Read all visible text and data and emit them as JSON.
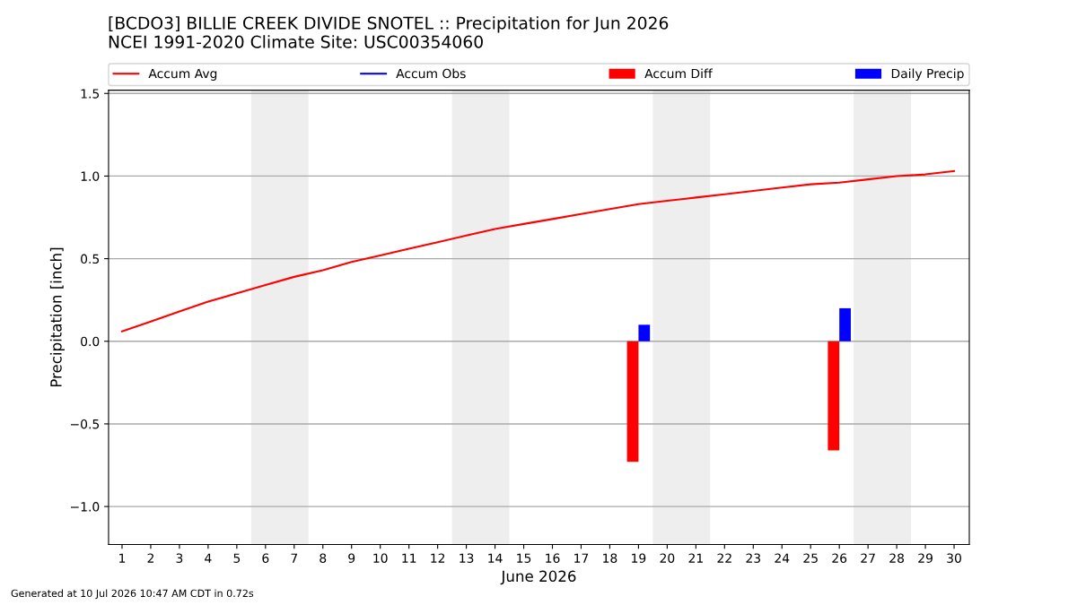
{
  "chart_data": {
    "type": "line",
    "title": "[BCDO3] BILLIE CREEK DIVIDE SNOTEL :: Precipitation for Jun 2026\nNCEI 1991-2020 Climate Site: USC00354060",
    "xlabel": "June 2026",
    "ylabel": "Precipitation [inch]",
    "x": [
      1,
      2,
      3,
      4,
      5,
      6,
      7,
      8,
      9,
      10,
      11,
      12,
      13,
      14,
      15,
      16,
      17,
      18,
      19,
      20,
      21,
      22,
      23,
      24,
      25,
      26,
      27,
      28,
      29,
      30
    ],
    "series": [
      {
        "name": "Accum Avg",
        "color": "#ff0000",
        "values": [
          0.06,
          0.12,
          0.18,
          0.24,
          0.29,
          0.34,
          0.39,
          0.43,
          0.48,
          0.52,
          0.56,
          0.6,
          0.64,
          0.68,
          0.71,
          0.74,
          0.77,
          0.8,
          0.83,
          0.85,
          0.87,
          0.89,
          0.91,
          0.93,
          0.95,
          0.96,
          0.98,
          1.0,
          1.01,
          1.03
        ]
      },
      {
        "name": "Accum Obs",
        "color": "#0000ff",
        "values": [
          null,
          null,
          null,
          null,
          null,
          null,
          null,
          null,
          null,
          null,
          null,
          null,
          null,
          null,
          null,
          null,
          null,
          null,
          null,
          null,
          null,
          null,
          null,
          null,
          null,
          null,
          null,
          null,
          null,
          null
        ]
      },
      {
        "name": "Accum Diff",
        "type": "bar",
        "color": "#ff0000",
        "values": [
          null,
          null,
          null,
          null,
          null,
          null,
          null,
          null,
          null,
          null,
          null,
          null,
          null,
          null,
          null,
          null,
          null,
          null,
          -0.73,
          null,
          null,
          null,
          null,
          null,
          null,
          -0.66,
          null,
          null,
          null,
          null
        ]
      },
      {
        "name": "Daily Precip",
        "type": "bar",
        "color": "#0000ff",
        "values": [
          null,
          null,
          null,
          null,
          null,
          null,
          null,
          null,
          null,
          null,
          null,
          null,
          null,
          null,
          null,
          null,
          null,
          null,
          0.1,
          null,
          null,
          null,
          null,
          null,
          null,
          0.2,
          null,
          null,
          null,
          null
        ]
      }
    ],
    "xlim": [
      0.53,
      30.53
    ],
    "xticks": [
      1,
      2,
      3,
      4,
      5,
      6,
      7,
      8,
      9,
      10,
      11,
      12,
      13,
      14,
      15,
      16,
      17,
      18,
      19,
      20,
      21,
      22,
      23,
      24,
      25,
      26,
      27,
      28,
      29,
      30
    ],
    "ylim": [
      -1.23,
      1.52
    ],
    "yticks": [
      {
        "value": -1.0,
        "label": "−1.0"
      },
      {
        "value": -0.5,
        "label": "−0.5"
      },
      {
        "value": 0.0,
        "label": "0.0"
      },
      {
        "value": 0.5,
        "label": "0.5"
      },
      {
        "value": 1.0,
        "label": "1.0"
      },
      {
        "value": 1.5,
        "label": "1.5"
      }
    ],
    "bands": [
      {
        "axis": "x",
        "from": 5.5,
        "to": 7.5,
        "color": "#eeeeee"
      },
      {
        "axis": "x",
        "from": 12.5,
        "to": 14.5,
        "color": "#eeeeee"
      },
      {
        "axis": "x",
        "from": 19.5,
        "to": 21.5,
        "color": "#eeeeee"
      },
      {
        "axis": "x",
        "from": 26.5,
        "to": 28.5,
        "color": "#eeeeee"
      }
    ],
    "grid": "y",
    "legend": "top",
    "annotations": [
      "Generated at 10 Jul 2026 10:47 AM CDT in 0.72s"
    ]
  }
}
